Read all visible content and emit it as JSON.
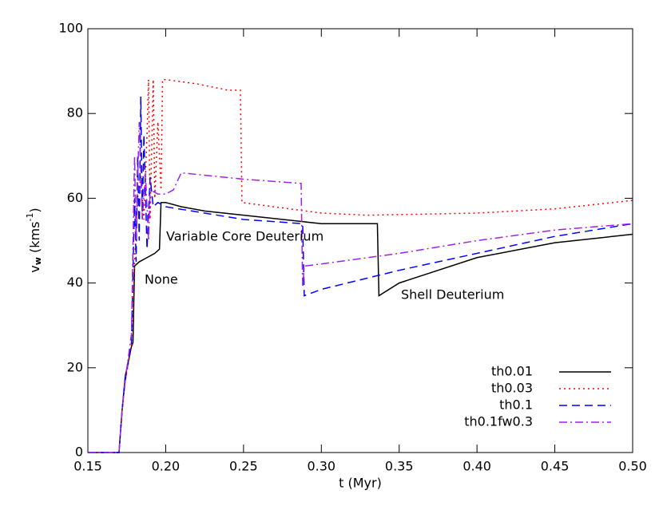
{
  "chart_data": {
    "type": "line",
    "xlabel": "t (Myr)",
    "ylabel": [
      "v",
      "w",
      " (kms",
      "-1",
      ")"
    ],
    "xlim": [
      0.15,
      0.5
    ],
    "ylim": [
      0,
      100
    ],
    "xticks": [
      0.15,
      {
        "value": 0.2,
        "label": "0.20"
      },
      0.25,
      {
        "value": 0.3,
        "label": "0.30"
      },
      0.35,
      {
        "value": 0.4,
        "label": "0.40"
      },
      0.45,
      {
        "value": 0.5,
        "label": "0.50"
      }
    ],
    "yticks": [
      0,
      20,
      40,
      60,
      80,
      100
    ],
    "legend": "lower right",
    "annotations": [
      "None",
      "Variable Core Deuterium",
      "Shell Deuterium"
    ],
    "series": [
      {
        "name": "th0.01",
        "color": "#000000",
        "linestyle": "solid",
        "x": [
          0.15,
          0.17,
          0.172,
          0.174,
          0.178,
          0.179,
          0.18,
          0.183,
          0.188,
          0.193,
          0.196,
          0.197,
          0.2,
          0.21,
          0.225,
          0.25,
          0.3,
          0.336,
          0.337,
          0.35,
          0.4,
          0.45,
          0.5
        ],
        "values": [
          0,
          0,
          10,
          18,
          25,
          26,
          44,
          45,
          46,
          47,
          48,
          59,
          59,
          58,
          57,
          56,
          54,
          54,
          37,
          40,
          46,
          49.5,
          51.5
        ]
      },
      {
        "name": "th0.03",
        "color": "#ff0000",
        "linestyle": "dotted",
        "x": [
          0.15,
          0.17,
          0.172,
          0.174,
          0.178,
          0.18,
          0.182,
          0.184,
          0.186,
          0.188,
          0.189,
          0.19,
          0.192,
          0.193,
          0.195,
          0.197,
          0.198,
          0.2,
          0.22,
          0.24,
          0.248,
          0.249,
          0.3,
          0.33,
          0.4,
          0.45,
          0.5
        ],
        "values": [
          0,
          0,
          10,
          17,
          25,
          45,
          60,
          65,
          55,
          75,
          88,
          55,
          88,
          60,
          78,
          62,
          88,
          88,
          87,
          85.5,
          85.5,
          59,
          56.5,
          56,
          56.5,
          57.5,
          59.5
        ]
      },
      {
        "name": "th0.1",
        "color": "#0000ff",
        "linestyle": "dashed",
        "x": [
          0.15,
          0.17,
          0.172,
          0.174,
          0.178,
          0.18,
          0.181,
          0.182,
          0.183,
          0.184,
          0.185,
          0.186,
          0.188,
          0.19,
          0.192,
          0.195,
          0.2,
          0.25,
          0.288,
          0.289,
          0.3,
          0.35,
          0.4,
          0.45,
          0.5
        ],
        "values": [
          0,
          0,
          10,
          17,
          26,
          60,
          45,
          70,
          50,
          84,
          55,
          75,
          48,
          65,
          58,
          59,
          58,
          55,
          54,
          37,
          38.5,
          43,
          47,
          51,
          54
        ]
      },
      {
        "name": "th0.1fw0.3",
        "color": "#a020f0",
        "linestyle": "dashdot",
        "x": [
          0.15,
          0.17,
          0.172,
          0.174,
          0.178,
          0.18,
          0.181,
          0.183,
          0.185,
          0.187,
          0.189,
          0.19,
          0.195,
          0.2,
          0.205,
          0.21,
          0.25,
          0.287,
          0.288,
          0.289,
          0.3,
          0.35,
          0.4,
          0.45,
          0.5
        ],
        "values": [
          0,
          0,
          10,
          17,
          28,
          70,
          50,
          78,
          55,
          66,
          50,
          62,
          61,
          61,
          62,
          66,
          64.5,
          63.5,
          39,
          44,
          44.5,
          47,
          50,
          52.5,
          54
        ]
      }
    ]
  }
}
